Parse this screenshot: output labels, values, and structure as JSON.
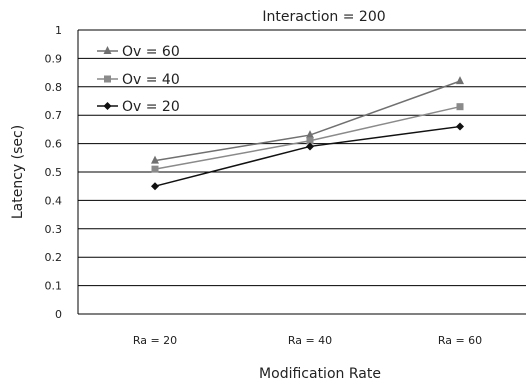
{
  "chart_data": {
    "type": "line",
    "title": "Interaction = 200",
    "xlabel": "Modification Rate",
    "ylabel": "Latency (sec)",
    "categories": [
      "Ra = 20",
      "Ra = 40",
      "Ra = 60"
    ],
    "ylim": [
      0,
      1
    ],
    "yticks": [
      "0",
      "0.1",
      "0.2",
      "0.3",
      "0.4",
      "0.5",
      "0.6",
      "0.7",
      "0.8",
      "0.9",
      "1"
    ],
    "grid": true,
    "legend_position": "top-left",
    "series": [
      {
        "name": "Ov = 60",
        "marker": "triangle",
        "color": "#707070",
        "values": [
          0.54,
          0.63,
          0.82
        ]
      },
      {
        "name": "Ov = 40",
        "marker": "square",
        "color": "#8a8a8a",
        "values": [
          0.51,
          0.61,
          0.73
        ]
      },
      {
        "name": "Ov = 20",
        "marker": "diamond",
        "color": "#111111",
        "values": [
          0.45,
          0.59,
          0.66
        ]
      }
    ]
  }
}
